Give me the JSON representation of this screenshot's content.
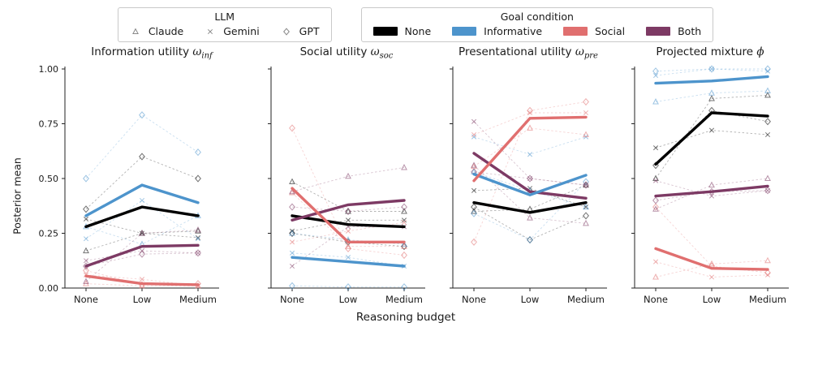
{
  "figure": {
    "y_axis_label": "Posterior mean",
    "x_axis_label": "Reasoning budget",
    "y_tick_values": [
      0,
      0.25,
      0.5,
      0.75,
      1.0
    ],
    "y_tick_labels": [
      "0.00",
      "0.25",
      "0.50",
      "0.75",
      "1.00"
    ],
    "categories": [
      "None",
      "Low",
      "Medium"
    ]
  },
  "legends": {
    "llm": {
      "title": "LLM",
      "marker_color": "#8a8a8a",
      "items": [
        {
          "label": "Claude",
          "marker": "triangle"
        },
        {
          "label": "Gemini",
          "marker": "x"
        },
        {
          "label": "GPT",
          "marker": "diamond"
        }
      ]
    },
    "goal": {
      "title": "Goal condition",
      "items": [
        {
          "label": "None",
          "color": "#000000"
        },
        {
          "label": "Informative",
          "color": "#4D94CC"
        },
        {
          "label": "Social",
          "color": "#E06F6F"
        },
        {
          "label": "Both",
          "color": "#7D3A64"
        }
      ]
    }
  },
  "chart_data": [
    {
      "type": "line",
      "title": {
        "prefix": "Information utility ",
        "symbol": "ω",
        "subscript": "inf"
      },
      "x": [
        "None",
        "Low",
        "Medium"
      ],
      "ylim": [
        0,
        1
      ],
      "series": [
        {
          "goal": "None",
          "values": [
            0.28,
            0.37,
            0.33
          ]
        },
        {
          "goal": "Both",
          "values": [
            0.1,
            0.19,
            0.195
          ]
        },
        {
          "goal": "Informative",
          "values": [
            0.33,
            0.47,
            0.39
          ]
        },
        {
          "goal": "Social",
          "values": [
            0.055,
            0.02,
            0.015
          ]
        }
      ],
      "llm_series": [
        {
          "llm": "Claude",
          "goal": "None",
          "values": [
            0.17,
            0.25,
            0.26
          ]
        },
        {
          "llm": "Gemini",
          "goal": "None",
          "values": [
            0.315,
            0.25,
            0.23
          ]
        },
        {
          "llm": "GPT",
          "goal": "None",
          "values": [
            0.36,
            0.6,
            0.5
          ]
        },
        {
          "llm": "Claude",
          "goal": "Informative",
          "values": [
            0.28,
            0.2,
            0.33
          ]
        },
        {
          "llm": "Gemini",
          "goal": "Informative",
          "values": [
            0.225,
            0.4,
            0.225
          ]
        },
        {
          "llm": "GPT",
          "goal": "Informative",
          "values": [
            0.5,
            0.79,
            0.62
          ]
        },
        {
          "llm": "Claude",
          "goal": "Social",
          "values": [
            0.02,
            0.01,
            0.01
          ]
        },
        {
          "llm": "Gemini",
          "goal": "Social",
          "values": [
            0.06,
            0.04,
            0.01
          ]
        },
        {
          "llm": "GPT",
          "goal": "Social",
          "values": [
            0.08,
            0.015,
            0.02
          ]
        },
        {
          "llm": "Claude",
          "goal": "Both",
          "values": [
            0.03,
            0.25,
            0.265
          ]
        },
        {
          "llm": "Gemini",
          "goal": "Both",
          "values": [
            0.125,
            0.17,
            0.16
          ]
        },
        {
          "llm": "GPT",
          "goal": "Both",
          "values": [
            0.1,
            0.155,
            0.16
          ]
        }
      ]
    },
    {
      "type": "line",
      "title": {
        "prefix": "Social utility ",
        "symbol": "ω",
        "subscript": "soc"
      },
      "x": [
        "None",
        "Low",
        "Medium"
      ],
      "ylim": [
        0,
        1
      ],
      "series": [
        {
          "goal": "None",
          "values": [
            0.33,
            0.29,
            0.28
          ]
        },
        {
          "goal": "Both",
          "values": [
            0.31,
            0.38,
            0.4
          ]
        },
        {
          "goal": "Informative",
          "values": [
            0.14,
            0.12,
            0.1
          ]
        },
        {
          "goal": "Social",
          "values": [
            0.455,
            0.21,
            0.21
          ]
        }
      ],
      "llm_series": [
        {
          "llm": "Claude",
          "goal": "None",
          "values": [
            0.485,
            0.35,
            0.35
          ]
        },
        {
          "llm": "Gemini",
          "goal": "None",
          "values": [
            0.26,
            0.31,
            0.31
          ]
        },
        {
          "llm": "GPT",
          "goal": "None",
          "values": [
            0.25,
            0.21,
            0.19
          ]
        },
        {
          "llm": "Claude",
          "goal": "Informative",
          "values": [
            0.25,
            0.22,
            0.2
          ]
        },
        {
          "llm": "Gemini",
          "goal": "Informative",
          "values": [
            0.16,
            0.14,
            0.1
          ]
        },
        {
          "llm": "GPT",
          "goal": "Informative",
          "values": [
            0.01,
            0.005,
            0.005
          ]
        },
        {
          "llm": "Claude",
          "goal": "Social",
          "values": [
            0.435,
            0.19,
            0.19
          ]
        },
        {
          "llm": "Gemini",
          "goal": "Social",
          "values": [
            0.21,
            0.26,
            0.3
          ]
        },
        {
          "llm": "GPT",
          "goal": "Social",
          "values": [
            0.73,
            0.18,
            0.15
          ]
        },
        {
          "llm": "Claude",
          "goal": "Both",
          "values": [
            0.44,
            0.51,
            0.55
          ]
        },
        {
          "llm": "Gemini",
          "goal": "Both",
          "values": [
            0.1,
            0.28,
            0.28
          ]
        },
        {
          "llm": "GPT",
          "goal": "Both",
          "values": [
            0.37,
            0.35,
            0.37
          ]
        }
      ]
    },
    {
      "type": "line",
      "title": {
        "prefix": "Presentational utility ",
        "symbol": "ω",
        "subscript": "pre"
      },
      "x": [
        "None",
        "Low",
        "Medium"
      ],
      "ylim": [
        0,
        1
      ],
      "series": [
        {
          "goal": "None",
          "values": [
            0.39,
            0.345,
            0.39
          ]
        },
        {
          "goal": "Both",
          "values": [
            0.615,
            0.44,
            0.41
          ]
        },
        {
          "goal": "Informative",
          "values": [
            0.52,
            0.425,
            0.515
          ]
        },
        {
          "goal": "Social",
          "values": [
            0.49,
            0.775,
            0.78
          ]
        }
      ],
      "llm_series": [
        {
          "llm": "Claude",
          "goal": "None",
          "values": [
            0.35,
            0.36,
            0.47
          ]
        },
        {
          "llm": "Gemini",
          "goal": "None",
          "values": [
            0.445,
            0.455,
            0.37
          ]
        },
        {
          "llm": "GPT",
          "goal": "None",
          "values": [
            0.37,
            0.22,
            0.33
          ]
        },
        {
          "llm": "Claude",
          "goal": "Informative",
          "values": [
            0.53,
            0.445,
            0.37
          ]
        },
        {
          "llm": "Gemini",
          "goal": "Informative",
          "values": [
            0.69,
            0.61,
            0.69
          ]
        },
        {
          "llm": "GPT",
          "goal": "Informative",
          "values": [
            0.34,
            0.22,
            0.485
          ]
        },
        {
          "llm": "Claude",
          "goal": "Social",
          "values": [
            0.555,
            0.73,
            0.7
          ]
        },
        {
          "llm": "Gemini",
          "goal": "Social",
          "values": [
            0.7,
            0.8,
            0.8
          ]
        },
        {
          "llm": "GPT",
          "goal": "Social",
          "values": [
            0.21,
            0.81,
            0.85
          ]
        },
        {
          "llm": "Claude",
          "goal": "Both",
          "values": [
            0.56,
            0.32,
            0.295
          ]
        },
        {
          "llm": "Gemini",
          "goal": "Both",
          "values": [
            0.76,
            0.5,
            0.47
          ]
        },
        {
          "llm": "GPT",
          "goal": "Both",
          "values": [
            0.53,
            0.5,
            0.47
          ]
        }
      ]
    },
    {
      "type": "line",
      "title": {
        "prefix": "Projected mixture ",
        "symbol": "ϕ",
        "subscript": ""
      },
      "x": [
        "None",
        "Low",
        "Medium"
      ],
      "ylim": [
        0,
        1
      ],
      "series": [
        {
          "goal": "None",
          "values": [
            0.565,
            0.8,
            0.785
          ]
        },
        {
          "goal": "Both",
          "values": [
            0.42,
            0.44,
            0.465
          ]
        },
        {
          "goal": "Informative",
          "values": [
            0.935,
            0.945,
            0.965
          ]
        },
        {
          "goal": "Social",
          "values": [
            0.18,
            0.09,
            0.085
          ]
        }
      ],
      "llm_series": [
        {
          "llm": "Claude",
          "goal": "None",
          "values": [
            0.5,
            0.865,
            0.88
          ]
        },
        {
          "llm": "Gemini",
          "goal": "None",
          "values": [
            0.64,
            0.72,
            0.7
          ]
        },
        {
          "llm": "GPT",
          "goal": "None",
          "values": [
            0.56,
            0.81,
            0.76
          ]
        },
        {
          "llm": "Claude",
          "goal": "Informative",
          "values": [
            0.85,
            0.89,
            0.9
          ]
        },
        {
          "llm": "Gemini",
          "goal": "Informative",
          "values": [
            0.97,
            1.0,
            0.99
          ]
        },
        {
          "llm": "GPT",
          "goal": "Informative",
          "values": [
            0.99,
            1.0,
            1.0
          ]
        },
        {
          "llm": "Claude",
          "goal": "Social",
          "values": [
            0.05,
            0.11,
            0.125
          ]
        },
        {
          "llm": "Gemini",
          "goal": "Social",
          "values": [
            0.12,
            0.05,
            0.06
          ]
        },
        {
          "llm": "GPT",
          "goal": "Social",
          "values": [
            0.37,
            0.1,
            0.07
          ]
        },
        {
          "llm": "Claude",
          "goal": "Both",
          "values": [
            0.36,
            0.47,
            0.5
          ]
        },
        {
          "llm": "Gemini",
          "goal": "Both",
          "values": [
            0.49,
            0.42,
            0.445
          ]
        },
        {
          "llm": "GPT",
          "goal": "Both",
          "values": [
            0.4,
            0.44,
            0.445
          ]
        }
      ]
    }
  ]
}
